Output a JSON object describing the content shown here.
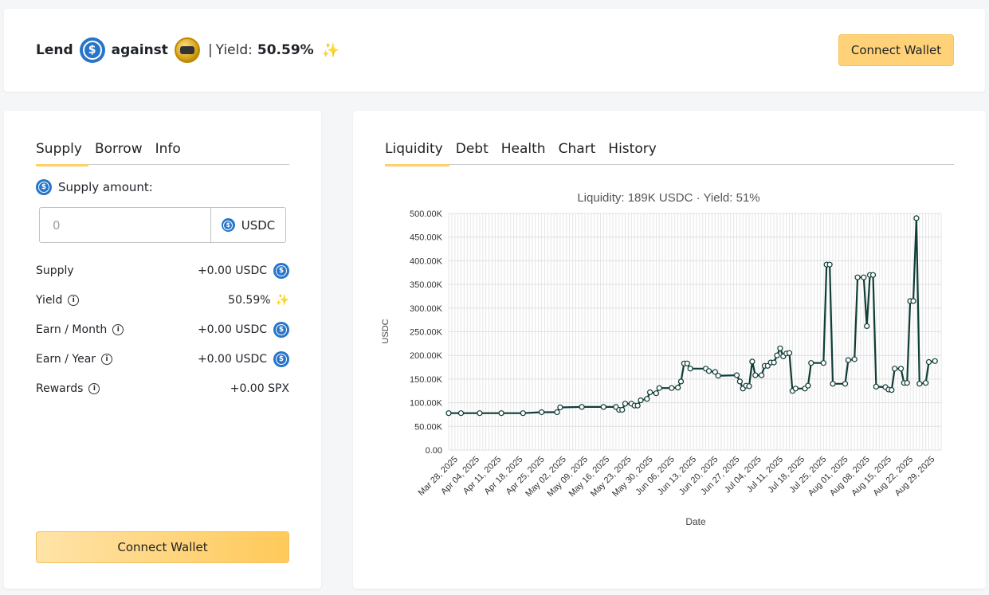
{
  "header": {
    "lend_label": "Lend",
    "against_label": "against",
    "separator": "|",
    "yield_label": "Yield:",
    "yield_value": "50.59%",
    "supply_token_icon": "usdc-coin-icon",
    "collateral_token_icon": "spx-token-icon",
    "connect_wallet_label": "Connect Wallet"
  },
  "left_panel": {
    "tabs": [
      {
        "label": "Supply",
        "active": true
      },
      {
        "label": "Borrow",
        "active": false
      },
      {
        "label": "Info",
        "active": false
      }
    ],
    "supply_amount_label": "Supply amount:",
    "input": {
      "placeholder": "0",
      "value": "",
      "unit": "USDC"
    },
    "rows": [
      {
        "label": "Supply",
        "value": "+0.00 USDC",
        "info": false,
        "icon": "usdc"
      },
      {
        "label": "Yield",
        "value": "50.59%",
        "info": true,
        "icon": "sparkle"
      },
      {
        "label": "Earn / Month",
        "value": "+0.00 USDC",
        "info": true,
        "icon": "usdc"
      },
      {
        "label": "Earn / Year",
        "value": "+0.00 USDC",
        "info": true,
        "icon": "usdc"
      },
      {
        "label": "Rewards",
        "value": "+0.00 SPX",
        "info": true,
        "icon": ""
      }
    ],
    "connect_wallet_label": "Connect Wallet"
  },
  "right_panel": {
    "tabs": [
      {
        "label": "Liquidity",
        "active": true
      },
      {
        "label": "Debt",
        "active": false
      },
      {
        "label": "Health",
        "active": false
      },
      {
        "label": "Chart",
        "active": false
      },
      {
        "label": "History",
        "active": false
      }
    ]
  },
  "colors": {
    "accent": "#ffd06a",
    "usdc": "#2775ca",
    "line": "#0f3d36"
  },
  "chart_data": {
    "type": "line",
    "title": "Liquidity: 189K USDC · Yield: 51%",
    "xlabel": "Date",
    "ylabel": "USDC",
    "ylim": [
      0,
      500000
    ],
    "yticks": [
      "0.00",
      "50.00K",
      "100.00K",
      "150.00K",
      "200.00K",
      "250.00K",
      "300.00K",
      "350.00K",
      "400.00K",
      "450.00K",
      "500.00K"
    ],
    "xticks": [
      "Mar 28, 2025",
      "Apr 04, 2025",
      "Apr 11, 2025",
      "Apr 18, 2025",
      "Apr 25, 2025",
      "May 02, 2025",
      "May 09, 2025",
      "May 16, 2025",
      "May 23, 2025",
      "May 30, 2025",
      "Jun 06, 2025",
      "Jun 13, 2025",
      "Jun 20, 2025",
      "Jun 27, 2025",
      "Jul 04, 2025",
      "Jul 11, 2025",
      "Jul 18, 2025",
      "Jul 25, 2025",
      "Aug 01, 2025",
      "Aug 08, 2025",
      "Aug 15, 2025",
      "Aug 22, 2025",
      "Aug 29, 2025"
    ],
    "grid": true,
    "points": [
      [
        "2025-03-26",
        78000
      ],
      [
        "2025-03-30",
        78000
      ],
      [
        "2025-04-05",
        78000
      ],
      [
        "2025-04-12",
        78000
      ],
      [
        "2025-04-19",
        78000
      ],
      [
        "2025-04-25",
        80000
      ],
      [
        "2025-04-30",
        80000
      ],
      [
        "2025-05-01",
        90000
      ],
      [
        "2025-05-08",
        91000
      ],
      [
        "2025-05-15",
        91000
      ],
      [
        "2025-05-19",
        91000
      ],
      [
        "2025-05-20",
        85000
      ],
      [
        "2025-05-21",
        85000
      ],
      [
        "2025-05-22",
        98000
      ],
      [
        "2025-05-24",
        98000
      ],
      [
        "2025-05-25",
        94000
      ],
      [
        "2025-05-26",
        94000
      ],
      [
        "2025-05-27",
        105000
      ],
      [
        "2025-05-29",
        108000
      ],
      [
        "2025-05-30",
        122000
      ],
      [
        "2025-06-01",
        120000
      ],
      [
        "2025-06-02",
        131000
      ],
      [
        "2025-06-06",
        131000
      ],
      [
        "2025-06-08",
        132000
      ],
      [
        "2025-06-09",
        145000
      ],
      [
        "2025-06-10",
        183000
      ],
      [
        "2025-06-11",
        183000
      ],
      [
        "2025-06-12",
        172000
      ],
      [
        "2025-06-17",
        172000
      ],
      [
        "2025-06-18",
        167000
      ],
      [
        "2025-06-20",
        165000
      ],
      [
        "2025-06-21",
        157000
      ],
      [
        "2025-06-27",
        158000
      ],
      [
        "2025-06-28",
        145000
      ],
      [
        "2025-06-29",
        130000
      ],
      [
        "2025-06-30",
        136000
      ],
      [
        "2025-07-01",
        135000
      ],
      [
        "2025-07-02",
        187000
      ],
      [
        "2025-07-03",
        158000
      ],
      [
        "2025-07-05",
        158000
      ],
      [
        "2025-07-06",
        178000
      ],
      [
        "2025-07-07",
        178000
      ],
      [
        "2025-07-08",
        185000
      ],
      [
        "2025-07-09",
        185000
      ],
      [
        "2025-07-10",
        200000
      ],
      [
        "2025-07-11",
        215000
      ],
      [
        "2025-07-12",
        198000
      ],
      [
        "2025-07-13",
        204000
      ],
      [
        "2025-07-14",
        205000
      ],
      [
        "2025-07-15",
        125000
      ],
      [
        "2025-07-16",
        130000
      ],
      [
        "2025-07-19",
        130000
      ],
      [
        "2025-07-20",
        136000
      ],
      [
        "2025-07-21",
        184000
      ],
      [
        "2025-07-25",
        184000
      ],
      [
        "2025-07-26",
        392000
      ],
      [
        "2025-07-27",
        392000
      ],
      [
        "2025-07-28",
        140000
      ],
      [
        "2025-08-01",
        140000
      ],
      [
        "2025-08-02",
        190000
      ],
      [
        "2025-08-04",
        192000
      ],
      [
        "2025-08-05",
        365000
      ],
      [
        "2025-08-07",
        365000
      ],
      [
        "2025-08-08",
        262000
      ],
      [
        "2025-08-09",
        370000
      ],
      [
        "2025-08-10",
        370000
      ],
      [
        "2025-08-11",
        134000
      ],
      [
        "2025-08-14",
        133000
      ],
      [
        "2025-08-15",
        128000
      ],
      [
        "2025-08-16",
        127000
      ],
      [
        "2025-08-17",
        172000
      ],
      [
        "2025-08-19",
        172000
      ],
      [
        "2025-08-20",
        142000
      ],
      [
        "2025-08-21",
        142000
      ],
      [
        "2025-08-22",
        315000
      ],
      [
        "2025-08-23",
        315000
      ],
      [
        "2025-08-24",
        490000
      ],
      [
        "2025-08-25",
        140000
      ],
      [
        "2025-08-27",
        142000
      ],
      [
        "2025-08-28",
        186000
      ],
      [
        "2025-08-30",
        188000
      ]
    ]
  }
}
